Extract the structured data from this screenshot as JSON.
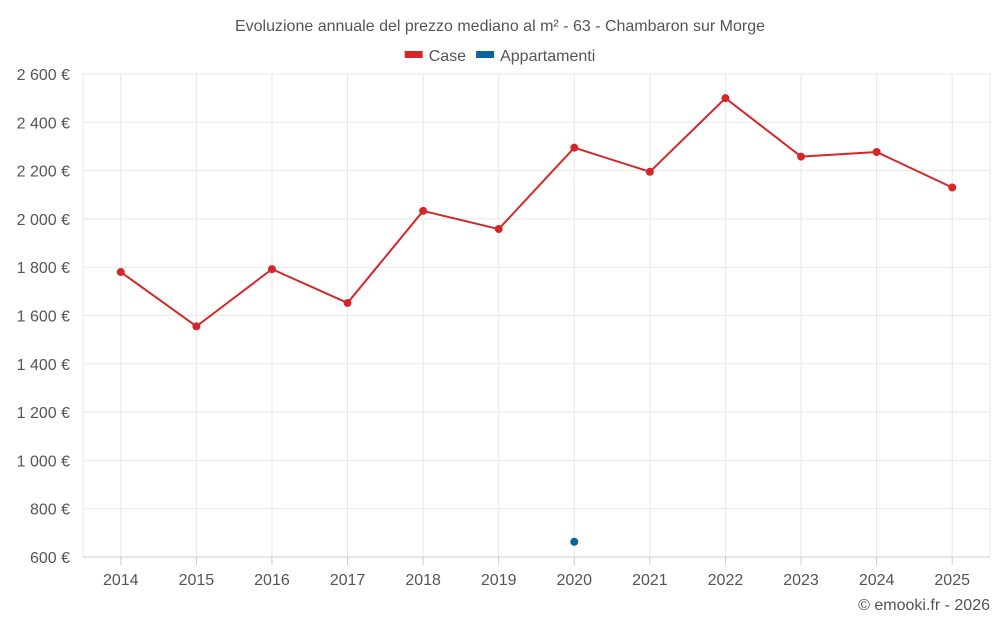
{
  "chart_data": {
    "type": "line",
    "title": "Evoluzione annuale del prezzo mediano al m² - 63 - Chambaron sur Morge",
    "categories": [
      "2014",
      "2015",
      "2016",
      "2017",
      "2018",
      "2019",
      "2020",
      "2021",
      "2022",
      "2023",
      "2024",
      "2025"
    ],
    "series": [
      {
        "name": "Case",
        "color": "#d62728",
        "values": [
          1780,
          1555,
          1792,
          1652,
          2033,
          1958,
          2295,
          2195,
          2500,
          2258,
          2277,
          2130
        ]
      },
      {
        "name": "Appartamenti",
        "color": "#0b64a0",
        "values": [
          null,
          null,
          null,
          null,
          null,
          null,
          663,
          null,
          null,
          null,
          null,
          null
        ]
      }
    ],
    "ylim": [
      600,
      2600
    ],
    "yticks": [
      600,
      800,
      1000,
      1200,
      1400,
      1600,
      1800,
      2000,
      2200,
      2400,
      2600
    ],
    "ytick_labels": [
      "600 €",
      "800 €",
      "1 000 €",
      "1 200 €",
      "1 400 €",
      "1 600 €",
      "1 800 €",
      "2 000 €",
      "2 200 €",
      "2 400 €",
      "2 600 €"
    ],
    "grid": true,
    "legend": "top-center",
    "xlabel": "",
    "ylabel": ""
  },
  "credit": "© emooki.fr - 2026"
}
